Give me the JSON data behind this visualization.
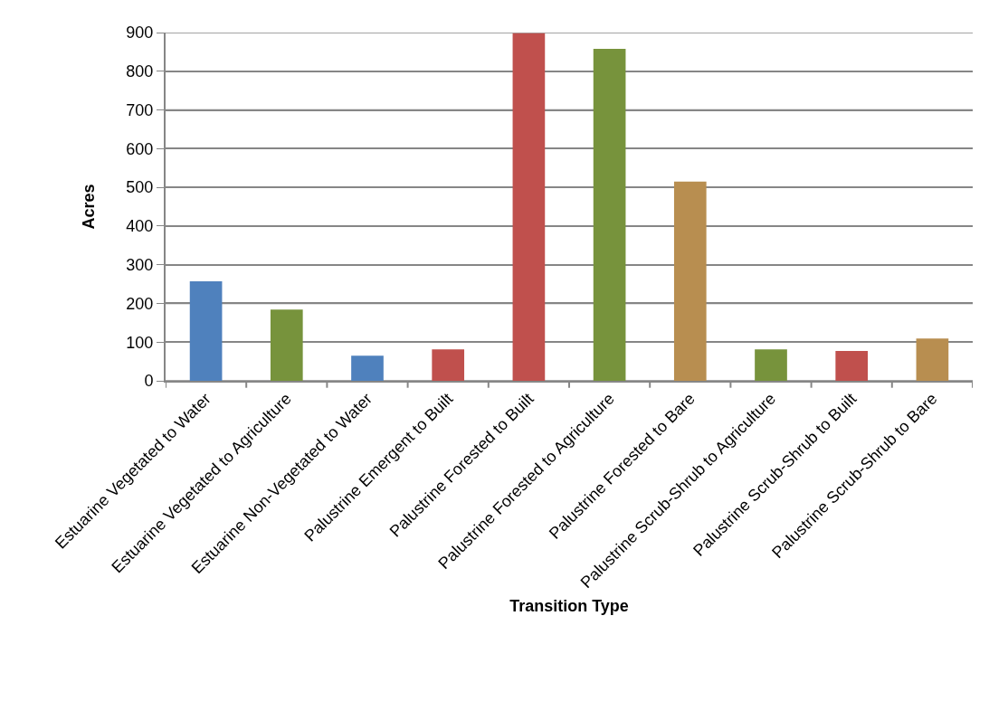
{
  "chart_data": {
    "type": "bar",
    "xlabel": "Transition Type",
    "ylabel": "Acres",
    "categories": [
      "Estuarine Vegetated to Water",
      "Estuarine Vegetated to Agriculture",
      "Estuarine Non-Vegetated to Water",
      "Palustrine Emergent to Built",
      "Palustrine Forested to Built",
      "Palustrine Forested to Agriculture",
      "Palustrine Forested to Bare",
      "Palustrine Scrub-Shrub to Agriculture",
      "Palustrine Scrub-Shrub to Built",
      "Palustrine Scrub-Shrub to Bare"
    ],
    "values": [
      257,
      184,
      65,
      81,
      898,
      858,
      515,
      81,
      77,
      109
    ],
    "colors": [
      "#4f81bd",
      "#77933c",
      "#4f81bd",
      "#c0504d",
      "#c0504d",
      "#77933c",
      "#b88e50",
      "#77933c",
      "#c0504d",
      "#b88e50"
    ],
    "ylim": [
      0,
      900
    ],
    "yticks": [
      0,
      100,
      200,
      300,
      400,
      500,
      600,
      700,
      800,
      900
    ],
    "grid": "y"
  }
}
